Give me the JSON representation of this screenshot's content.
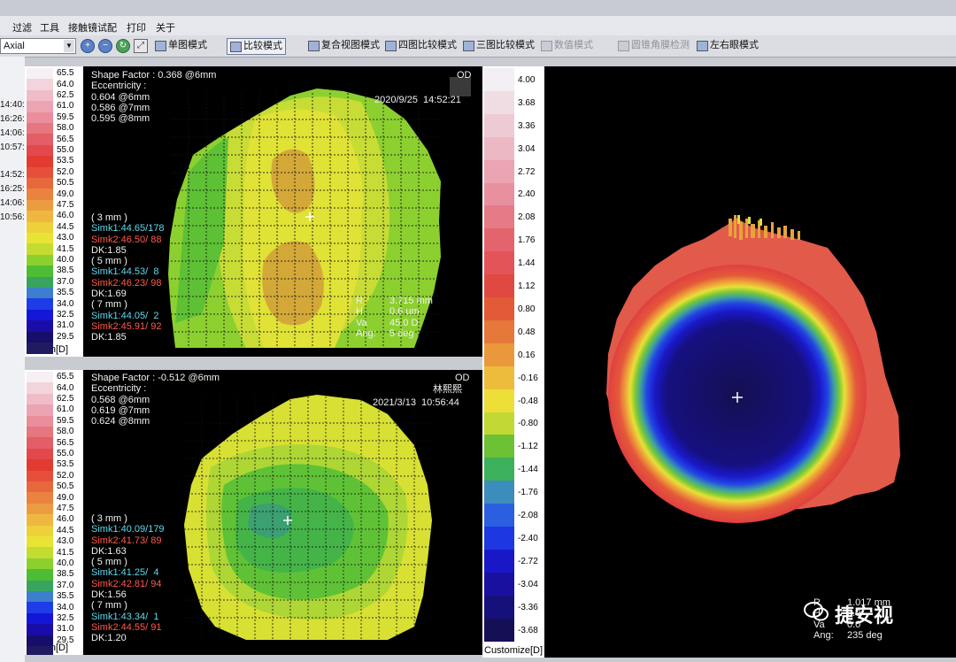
{
  "menu": {
    "items": [
      "过滤",
      "工具",
      "接触镜试配",
      "打印",
      "关于"
    ]
  },
  "toolbar": {
    "map_type": "Axial",
    "modes": [
      {
        "label": "单图模式",
        "active": false,
        "disabled": false
      },
      {
        "label": "比较模式",
        "active": true,
        "disabled": false
      },
      {
        "label": "复合视图模式",
        "active": false,
        "disabled": false
      },
      {
        "label": "四图比较模式",
        "active": false,
        "disabled": false
      },
      {
        "label": "三图比较模式",
        "active": false,
        "disabled": false
      },
      {
        "label": "数值模式",
        "active": false,
        "disabled": true
      },
      {
        "label": "圆锥角膜检测",
        "active": false,
        "disabled": true
      },
      {
        "label": "左右眼模式",
        "active": false,
        "disabled": false
      }
    ]
  },
  "session_times": [
    "14:40:",
    "16:26:",
    "14:06:",
    "10:57:",
    "14:52:",
    "16:25:",
    "14:06:",
    "10:56:"
  ],
  "scale_left": {
    "title": "Wilson[D]",
    "labels": [
      "65.5",
      "64.0",
      "62.5",
      "61.0",
      "59.5",
      "58.0",
      "56.5",
      "55.0",
      "53.5",
      "52.0",
      "50.5",
      "49.0",
      "47.5",
      "46.0",
      "44.5",
      "43.0",
      "41.5",
      "40.0",
      "38.5",
      "37.0",
      "35.5",
      "34.0",
      "32.5",
      "31.0",
      "29.5"
    ],
    "colors": [
      "#f6f0f4",
      "#f2d4dc",
      "#efbcc8",
      "#eca4b2",
      "#e98e9a",
      "#e67680",
      "#e35e66",
      "#e2484c",
      "#e33a32",
      "#e6503a",
      "#e8683e",
      "#ea8240",
      "#ec9c40",
      "#eeb840",
      "#eed03a",
      "#e8e434",
      "#c4dc32",
      "#8cd030",
      "#4ebc34",
      "#38a460",
      "#3c7fcc",
      "#1e3ce8",
      "#1416d6",
      "#1a0ca8",
      "#160e6a",
      "#201a60"
    ]
  },
  "map1": {
    "shape_factor": "Shape Factor : 0.368 @6mm",
    "eccentricity_label": "Eccentricity :",
    "ecc_values": [
      "0.604 @6mm",
      "0.586 @7mm",
      "0.595 @8mm"
    ],
    "eye": "OD",
    "datetime": "2020/9/25  14:52:21",
    "zones": [
      {
        "label": "( 3 mm )",
        "simk1": "Simk1:44.65/178",
        "simk2": "Simk2:46.50/ 88",
        "dk": "DK:1.85"
      },
      {
        "label": "( 5 mm )",
        "simk1": "Simk1:44.53/  8",
        "simk2": "Simk2:46.23/ 98",
        "dk": "DK:1.69"
      },
      {
        "label": "( 7 mm )",
        "simk1": "Simk1:44.05/  2",
        "simk2": "Simk2:45.91/ 92",
        "dk": "DK:1.85"
      }
    ],
    "cursor_labels": [
      "R",
      "H",
      "Va",
      "Ang:"
    ],
    "cursor_values": [
      "3.715 mm",
      "0.6 um",
      "45.0 D",
      "5 deg"
    ]
  },
  "map2": {
    "shape_factor": "Shape Factor : -0.512 @6mm",
    "eccentricity_label": "Eccentricity :",
    "ecc_values": [
      "0.568 @6mm",
      "0.619 @7mm",
      "0.624 @8mm"
    ],
    "eye": "OD",
    "patient": "林熙熙",
    "datetime": "2021/3/13  10:56:44",
    "zones": [
      {
        "label": "( 3 mm )",
        "simk1": "Simk1:40.09/179",
        "simk2": "Simk2:41.73/ 89",
        "dk": "DK:1.63"
      },
      {
        "label": "( 5 mm )",
        "simk1": "Simk1:41.25/  4",
        "simk2": "Simk2:42.81/ 94",
        "dk": "DK:1.56"
      },
      {
        "label": "( 7 mm )",
        "simk1": "Simk1:43.34/  1",
        "simk2": "Simk2:44.55/ 91",
        "dk": "DK:1.20"
      }
    ]
  },
  "scale_right": {
    "title": "Customize[D]",
    "labels": [
      "4.00",
      "3.68",
      "3.36",
      "3.04",
      "2.72",
      "2.40",
      "2.08",
      "1.76",
      "1.44",
      "1.12",
      "0.80",
      "0.48",
      "0.16",
      "-0.16",
      "-0.48",
      "-0.80",
      "-1.12",
      "-1.44",
      "-1.76",
      "-2.08",
      "-2.40",
      "-2.72",
      "-3.04",
      "-3.36",
      "-3.68"
    ],
    "colors": [
      "#f2eef4",
      "#f0dde4",
      "#eecbd4",
      "#ecb8c4",
      "#eaa4b2",
      "#e8909e",
      "#e67a86",
      "#e4646e",
      "#e25458",
      "#e04842",
      "#e25a36",
      "#e6783a",
      "#ea983c",
      "#eebc3c",
      "#eede38",
      "#c2d834",
      "#6cc234",
      "#3cb05a",
      "#3c8cbc",
      "#2a5fe0",
      "#1d38e2",
      "#1818c8",
      "#1a10a0",
      "#16107a",
      "#151056"
    ]
  },
  "diff_map": {
    "cursor_labels": [
      "R",
      "H",
      "Va",
      "Ang:"
    ],
    "cursor_values": [
      "1.017 mm",
      "0.0",
      "0.0",
      "235 deg"
    ]
  },
  "watermark": "捷安视"
}
